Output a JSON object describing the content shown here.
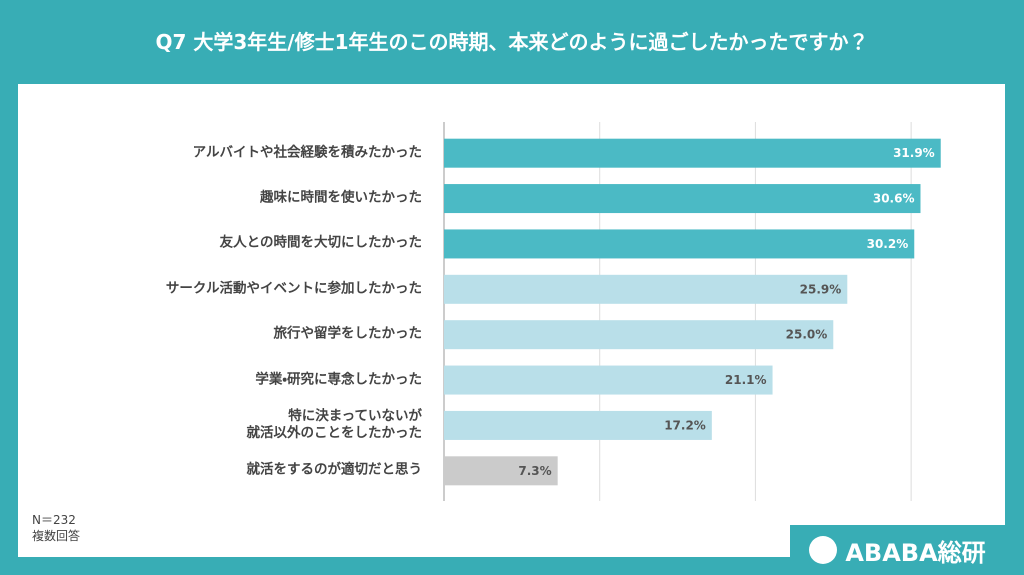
{
  "chart_data": {
    "type": "bar",
    "orientation": "horizontal",
    "title": "Q7  大学3年生/修士1年生のこの時期、本来どのように過ごしたかったですか？",
    "categories": [
      "アルバイトや社会経験を積みたかった",
      "趣味に時間を使いたかった",
      "友人との時間を大切にしたかった",
      "サークル活動やイベントに参加したかった",
      "旅行や留学をしたかった",
      "学業・研究に専念したかった",
      "特に決まっていないが\n就活以外のことをしたかった",
      "就活をするのが適切だと思う"
    ],
    "values": [
      31.9,
      30.6,
      30.2,
      25.9,
      25.0,
      21.1,
      17.2,
      7.3
    ],
    "value_labels": [
      "31.9%",
      "30.6%",
      "30.2%",
      "25.9%",
      "25.0%",
      "21.1%",
      "17.2%",
      "7.3%"
    ],
    "colors": [
      "#4bbac5",
      "#4bbac5",
      "#4bbac5",
      "#b9dfe9",
      "#b9dfe9",
      "#b9dfe9",
      "#b9dfe9",
      "#cbcbcb"
    ],
    "xlim": [
      0,
      35
    ],
    "xticks": [
      0,
      10,
      20,
      30
    ],
    "grid": true,
    "notes": [
      "N＝232",
      "複数回答"
    ],
    "brand": "ABABA総研"
  }
}
